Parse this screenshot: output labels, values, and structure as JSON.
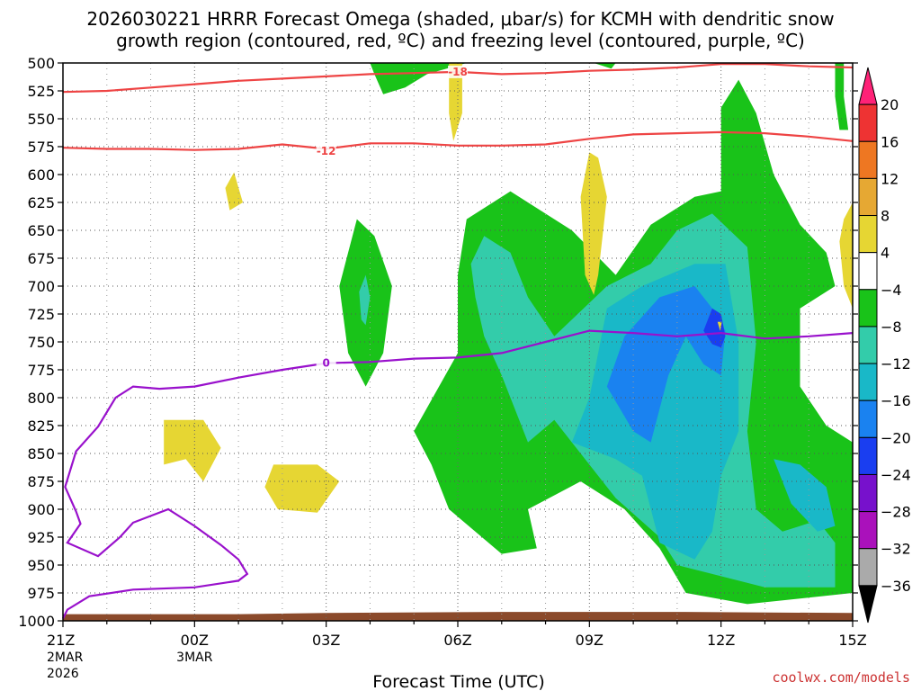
{
  "colors": {
    "green": "#19c319",
    "teal_light": "#33ccaa",
    "teal": "#19b8c8",
    "blue": "#1a82f0",
    "blue_dark": "#1a3ef0",
    "yellow": "#e6d633",
    "red_contour": "#ee4444",
    "purple_contour": "#9911cc",
    "terrain": "#8b4a2b",
    "credit": "#cc3333"
  },
  "chart_data": {
    "type": "contour",
    "title_line1": "2026030221 HRRR Forecast Omega (shaded, μbar/s) for KCMH with dendritic snow",
    "title_line2": "growth region (contoured, red, ºC) and freezing level (contoured, purple, ºC)",
    "xlabel": "Forecast Time (UTC)",
    "credit": "coolwx.com/models",
    "x_range_hours": [
      0,
      18
    ],
    "y_range_mb": [
      500,
      1000
    ],
    "x_ticks": [
      {
        "h": 0,
        "l1": "21Z",
        "l2": "2MAR",
        "l3": "2026"
      },
      {
        "h": 3,
        "l1": "00Z",
        "l2": "3MAR",
        "l3": ""
      },
      {
        "h": 6,
        "l1": "03Z",
        "l2": "",
        "l3": ""
      },
      {
        "h": 9,
        "l1": "06Z",
        "l2": "",
        "l3": ""
      },
      {
        "h": 12,
        "l1": "09Z",
        "l2": "",
        "l3": ""
      },
      {
        "h": 15,
        "l1": "12Z",
        "l2": "",
        "l3": ""
      },
      {
        "h": 18,
        "l1": "15Z",
        "l2": "",
        "l3": ""
      }
    ],
    "y_ticks": [
      500,
      525,
      550,
      575,
      600,
      625,
      650,
      675,
      700,
      725,
      750,
      775,
      800,
      825,
      850,
      875,
      900,
      925,
      950,
      975,
      1000
    ],
    "colorbar": {
      "levels": [
        "20",
        "16",
        "12",
        "8",
        "4",
        "−4",
        "−8",
        "−12",
        "−16",
        "−20",
        "−24",
        "−28",
        "−32",
        "−36"
      ],
      "colors": [
        "#ff2277",
        "#ee3333",
        "#ee7722",
        "#e6a833",
        "#e6d633",
        "#ffffff",
        "#19c319",
        "#33ccaa",
        "#19b8c8",
        "#1a82f0",
        "#1a3ef0",
        "#7711cc",
        "#aa11bb",
        "#aaaaaa",
        "#000000"
      ]
    },
    "shaded_omega": [
      {
        "level": -4,
        "color": "green",
        "points": [
          [
            9.0,
            690
          ],
          [
            9.2,
            640
          ],
          [
            10.2,
            615
          ],
          [
            11.6,
            650
          ],
          [
            12.6,
            690
          ],
          [
            13.4,
            645
          ],
          [
            14.4,
            620
          ],
          [
            15.0,
            615
          ],
          [
            15.0,
            540
          ],
          [
            15.4,
            515
          ],
          [
            15.8,
            545
          ],
          [
            16.2,
            600
          ],
          [
            16.8,
            645
          ],
          [
            17.4,
            670
          ],
          [
            17.6,
            700
          ],
          [
            16.8,
            720
          ],
          [
            16.8,
            790
          ],
          [
            17.4,
            825
          ],
          [
            18,
            840
          ],
          [
            18,
            975
          ],
          [
            16.8,
            980
          ],
          [
            15.6,
            985
          ],
          [
            14.2,
            975
          ],
          [
            13.6,
            935
          ],
          [
            12.8,
            900
          ],
          [
            11.8,
            875
          ],
          [
            10.6,
            900
          ],
          [
            10.8,
            935
          ],
          [
            10.0,
            940
          ],
          [
            8.8,
            900
          ],
          [
            8.4,
            860
          ],
          [
            8.0,
            830
          ],
          [
            9.0,
            760
          ]
        ]
      },
      {
        "level": -4,
        "color": "green",
        "points": [
          [
            6.5,
            760
          ],
          [
            6.3,
            700
          ],
          [
            6.7,
            640
          ],
          [
            7.1,
            655
          ],
          [
            7.5,
            700
          ],
          [
            7.3,
            760
          ],
          [
            6.9,
            790
          ]
        ]
      },
      {
        "level": -4,
        "color": "green",
        "points": [
          [
            7.0,
            500
          ],
          [
            7.1,
            510
          ],
          [
            7.3,
            528
          ],
          [
            7.8,
            522
          ],
          [
            8.3,
            510
          ],
          [
            9.2,
            500
          ]
        ]
      },
      {
        "level": -4,
        "color": "green",
        "points": [
          [
            12.1,
            500
          ],
          [
            12.6,
            500
          ],
          [
            12.5,
            505
          ]
        ]
      },
      {
        "level": -4,
        "color": "green",
        "points": [
          [
            17.6,
            500
          ],
          [
            17.8,
            500
          ],
          [
            17.8,
            530
          ],
          [
            17.9,
            560
          ],
          [
            17.7,
            560
          ],
          [
            17.6,
            530
          ]
        ]
      },
      {
        "level": -8,
        "color": "teal_light",
        "points": [
          [
            9.3,
            680
          ],
          [
            9.6,
            655
          ],
          [
            10.2,
            670
          ],
          [
            10.6,
            710
          ],
          [
            11.2,
            745
          ],
          [
            12.4,
            700
          ],
          [
            13.4,
            680
          ],
          [
            14.0,
            650
          ],
          [
            14.8,
            635
          ],
          [
            15.6,
            665
          ],
          [
            15.8,
            750
          ],
          [
            15.6,
            830
          ],
          [
            15.8,
            900
          ],
          [
            16.4,
            920
          ],
          [
            17.2,
            910
          ],
          [
            17.6,
            930
          ],
          [
            17.6,
            970
          ],
          [
            16.0,
            970
          ],
          [
            14.0,
            950
          ],
          [
            13.6,
            925
          ],
          [
            12.6,
            890
          ],
          [
            11.6,
            840
          ],
          [
            11.2,
            820
          ],
          [
            10.6,
            840
          ],
          [
            10.0,
            780
          ],
          [
            9.6,
            745
          ],
          [
            9.4,
            710
          ]
        ]
      },
      {
        "level": -8,
        "color": "teal_light",
        "points": [
          [
            6.8,
            730
          ],
          [
            6.75,
            705
          ],
          [
            6.9,
            690
          ],
          [
            7.0,
            710
          ],
          [
            6.9,
            735
          ]
        ]
      },
      {
        "level": -12,
        "color": "teal",
        "points": [
          [
            11.6,
            840
          ],
          [
            12.0,
            800
          ],
          [
            12.4,
            720
          ],
          [
            13.2,
            700
          ],
          [
            14.4,
            680
          ],
          [
            15.1,
            680
          ],
          [
            15.4,
            750
          ],
          [
            15.4,
            830
          ],
          [
            15.0,
            870
          ],
          [
            14.8,
            920
          ],
          [
            14.4,
            945
          ],
          [
            13.6,
            930
          ],
          [
            13.2,
            870
          ],
          [
            12.6,
            855
          ]
        ]
      },
      {
        "level": -12,
        "color": "teal",
        "points": [
          [
            16.2,
            855
          ],
          [
            16.8,
            860
          ],
          [
            17.4,
            880
          ],
          [
            17.6,
            915
          ],
          [
            17.2,
            920
          ],
          [
            16.6,
            895
          ]
        ]
      },
      {
        "level": -16,
        "color": "blue",
        "points": [
          [
            12.4,
            790
          ],
          [
            12.8,
            745
          ],
          [
            13.6,
            710
          ],
          [
            14.4,
            700
          ],
          [
            14.8,
            720
          ],
          [
            15.1,
            740
          ],
          [
            15.0,
            780
          ],
          [
            14.6,
            770
          ],
          [
            14.2,
            745
          ],
          [
            13.8,
            780
          ],
          [
            13.4,
            840
          ],
          [
            13.0,
            830
          ]
        ]
      },
      {
        "level": -20,
        "color": "blue_dark",
        "points": [
          [
            14.6,
            740
          ],
          [
            14.8,
            720
          ],
          [
            15.0,
            725
          ],
          [
            15.1,
            745
          ],
          [
            15.0,
            755
          ],
          [
            14.8,
            752
          ]
        ]
      },
      {
        "level": 4,
        "color": "yellow",
        "points": [
          [
            2.3,
            820
          ],
          [
            3.2,
            820
          ],
          [
            3.6,
            845
          ],
          [
            3.2,
            875
          ],
          [
            2.8,
            855
          ],
          [
            2.3,
            860
          ]
        ]
      },
      {
        "level": 4,
        "color": "yellow",
        "points": [
          [
            4.8,
            860
          ],
          [
            5.8,
            860
          ],
          [
            6.3,
            875
          ],
          [
            5.8,
            903
          ],
          [
            4.9,
            900
          ],
          [
            4.6,
            880
          ]
        ]
      },
      {
        "level": 4,
        "color": "yellow",
        "points": [
          [
            3.9,
            598
          ],
          [
            4.1,
            625
          ],
          [
            3.8,
            632
          ],
          [
            3.7,
            612
          ]
        ]
      },
      {
        "level": 4,
        "color": "yellow",
        "points": [
          [
            8.8,
            500
          ],
          [
            9.1,
            500
          ],
          [
            9.1,
            545
          ],
          [
            8.9,
            570
          ],
          [
            8.8,
            545
          ]
        ]
      },
      {
        "level": 4,
        "color": "yellow",
        "points": [
          [
            12.0,
            580
          ],
          [
            12.2,
            585
          ],
          [
            12.4,
            620
          ],
          [
            12.2,
            690
          ],
          [
            12.1,
            708
          ],
          [
            11.9,
            690
          ],
          [
            11.8,
            620
          ]
        ]
      },
      {
        "level": 4,
        "color": "yellow",
        "points": [
          [
            14.92,
            732
          ],
          [
            15.02,
            732
          ],
          [
            14.98,
            740
          ]
        ]
      },
      {
        "level": 4,
        "color": "yellow",
        "points": [
          [
            17.8,
            640
          ],
          [
            18,
            625
          ],
          [
            18,
            720
          ],
          [
            17.8,
            700
          ],
          [
            17.7,
            660
          ]
        ]
      }
    ],
    "red_contours": [
      {
        "label": "-18",
        "label_at": [
          9.0,
          508
        ],
        "points": [
          [
            0,
            526
          ],
          [
            1,
            525
          ],
          [
            2,
            522
          ],
          [
            3,
            519
          ],
          [
            4,
            516
          ],
          [
            5,
            514
          ],
          [
            6,
            512
          ],
          [
            7,
            510
          ],
          [
            8,
            509
          ],
          [
            9,
            508
          ],
          [
            10,
            510
          ],
          [
            11,
            509
          ],
          [
            12,
            507
          ],
          [
            13,
            506
          ],
          [
            14,
            504
          ],
          [
            15,
            501
          ],
          [
            16,
            501
          ],
          [
            17,
            503
          ],
          [
            18,
            504
          ]
        ]
      },
      {
        "label": "-12",
        "label_at": [
          6.0,
          579
        ],
        "points": [
          [
            0,
            576
          ],
          [
            1,
            577
          ],
          [
            2,
            577
          ],
          [
            3,
            578
          ],
          [
            4,
            577
          ],
          [
            5,
            573
          ],
          [
            6,
            577
          ],
          [
            7,
            572
          ],
          [
            8,
            572
          ],
          [
            9,
            574
          ],
          [
            10,
            574
          ],
          [
            11,
            573
          ],
          [
            12,
            568
          ],
          [
            13,
            564
          ],
          [
            14,
            563
          ],
          [
            15,
            562
          ],
          [
            16,
            563
          ],
          [
            17,
            566
          ],
          [
            18,
            570
          ]
        ]
      }
    ],
    "purple_contours": [
      {
        "label": "0",
        "label_at": [
          6.0,
          769
        ],
        "points": [
          [
            18,
            742
          ],
          [
            17,
            745
          ],
          [
            16,
            747
          ],
          [
            15,
            742
          ],
          [
            14,
            745
          ],
          [
            13,
            742
          ],
          [
            12,
            740
          ],
          [
            11,
            750
          ],
          [
            10,
            760
          ],
          [
            9,
            764
          ],
          [
            8,
            765
          ],
          [
            7,
            768
          ],
          [
            6,
            769
          ],
          [
            5,
            775
          ],
          [
            4,
            782
          ],
          [
            3,
            790
          ],
          [
            2.2,
            792
          ],
          [
            1.6,
            790
          ],
          [
            1.2,
            800
          ],
          [
            0.8,
            826
          ],
          [
            0.3,
            848
          ],
          [
            0.05,
            880
          ],
          [
            0.3,
            902
          ],
          [
            0.4,
            913
          ],
          [
            0.1,
            930
          ],
          [
            0.8,
            942
          ],
          [
            1.3,
            925
          ],
          [
            1.6,
            912
          ],
          [
            2.0,
            906
          ],
          [
            2.4,
            900
          ],
          [
            3.0,
            915
          ],
          [
            3.6,
            932
          ],
          [
            4.0,
            945
          ],
          [
            4.2,
            958
          ],
          [
            4.0,
            964
          ],
          [
            3.0,
            970
          ],
          [
            1.6,
            972
          ],
          [
            0.6,
            978
          ],
          [
            0.1,
            990
          ],
          [
            0,
            998
          ]
        ]
      }
    ],
    "terrain": {
      "top_mb": [
        [
          0,
          994
        ],
        [
          4,
          994
        ],
        [
          6,
          993
        ],
        [
          10,
          992
        ],
        [
          14,
          992
        ],
        [
          18,
          993
        ]
      ]
    }
  }
}
